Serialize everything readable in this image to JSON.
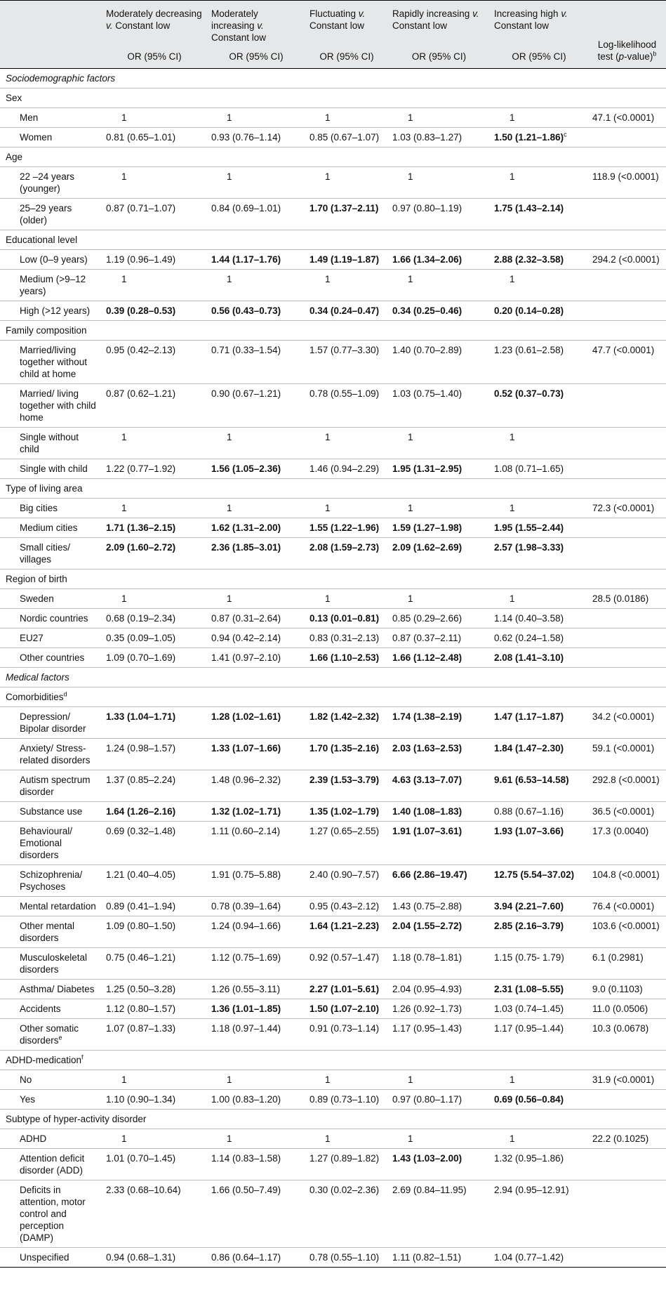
{
  "table": {
    "columns": [
      {
        "parts": [
          "Moderately decreasing ",
          "v.",
          " Constant low"
        ],
        "unit": "OR (95% CI)"
      },
      {
        "parts": [
          "Moderately increasing ",
          "v.",
          " Constant low"
        ],
        "unit": "OR (95% CI)"
      },
      {
        "parts": [
          "Fluctuating ",
          "v.",
          " Constant low"
        ],
        "unit": "OR (95% CI)"
      },
      {
        "parts": [
          "Rapidly increasing ",
          "v.",
          " Constant low"
        ],
        "unit": "OR (95% CI)"
      },
      {
        "parts": [
          "Increasing high ",
          "v.",
          " Constant low"
        ],
        "unit": "OR (95% CI)"
      }
    ],
    "test_header": {
      "parts": [
        "Log-likelihood test (",
        "p",
        "-value)"
      ],
      "sup": "b"
    },
    "rows": [
      {
        "kind": "section",
        "label": "Sociodemographic factors"
      },
      {
        "kind": "group",
        "label": "Sex"
      },
      {
        "kind": "row",
        "label": "Men",
        "cells": [
          "1",
          "1",
          "1",
          "1",
          "1"
        ],
        "test": "47.1 (<0.0001)"
      },
      {
        "kind": "row",
        "label": "Women",
        "cells": [
          "0.81 (0.65–1.01)",
          "0.93 (0.76–1.14)",
          "0.85 (0.67–1.07)",
          "1.03 (0.83–1.27)",
          {
            "text": "1.50 (1.21–1.86)",
            "bold": true,
            "sup": "c"
          }
        ]
      },
      {
        "kind": "group",
        "label": "Age"
      },
      {
        "kind": "row",
        "label": "22 –24 years (younger)",
        "cells": [
          "1",
          "1",
          "1",
          "1",
          "1"
        ],
        "test": "118.9 (<0.0001)"
      },
      {
        "kind": "row",
        "label": "25–29 years (older)",
        "cells": [
          "0.87 (0.71–1.07)",
          "0.84 (0.69–1.01)",
          {
            "text": "1.70 (1.37–2.11)",
            "bold": true
          },
          "0.97 (0.80–1.19)",
          {
            "text": "1.75 (1.43–2.14)",
            "bold": true
          }
        ]
      },
      {
        "kind": "group",
        "label": "Educational level"
      },
      {
        "kind": "row",
        "label": "Low (0–9 years)",
        "cells": [
          "1.19 (0.96–1.49)",
          {
            "text": "1.44 (1.17–1.76)",
            "bold": true
          },
          {
            "text": "1.49 (1.19–1.87)",
            "bold": true
          },
          {
            "text": "1.66 (1.34–2.06)",
            "bold": true
          },
          {
            "text": "2.88 (2.32–3.58)",
            "bold": true
          }
        ],
        "test": "294.2 (<0.0001)"
      },
      {
        "kind": "row",
        "label": "Medium (>9–12 years)",
        "cells": [
          "1",
          "1",
          "1",
          "1",
          "1"
        ]
      },
      {
        "kind": "row",
        "label": "High (>12 years)",
        "cells": [
          {
            "text": "0.39 (0.28–0.53)",
            "bold": true
          },
          {
            "text": "0.56 (0.43–0.73)",
            "bold": true
          },
          {
            "text": "0.34 (0.24–0.47)",
            "bold": true
          },
          {
            "text": "0.34 (0.25–0.46)",
            "bold": true
          },
          {
            "text": "0.20 (0.14–0.28)",
            "bold": true
          }
        ]
      },
      {
        "kind": "group",
        "label": "Family composition"
      },
      {
        "kind": "row",
        "label": "Married/living together without child at home",
        "cells": [
          "0.95 (0.42–2.13)",
          "0.71 (0.33–1.54)",
          "1.57 (0.77–3.30)",
          "1.40 (0.70–2.89)",
          "1.23 (0.61–2.58)"
        ],
        "test": "47.7 (<0.0001)"
      },
      {
        "kind": "row",
        "label": "Married/ living together with child home",
        "cells": [
          "0.87 (0.62–1.21)",
          "0.90 (0.67–1.21)",
          "0.78 (0.55–1.09)",
          "1.03 (0.75–1.40)",
          {
            "text": "0.52 (0.37–0.73)",
            "bold": true
          }
        ]
      },
      {
        "kind": "row",
        "label": "Single without child",
        "cells": [
          "1",
          "1",
          "1",
          "1",
          "1"
        ]
      },
      {
        "kind": "row",
        "label": "Single with child",
        "cells": [
          "1.22 (0.77–1.92)",
          {
            "text": "1.56 (1.05–2.36)",
            "bold": true
          },
          "1.46 (0.94–2.29)",
          {
            "text": "1.95 (1.31–2.95)",
            "bold": true
          },
          "1.08 (0.71–1.65)"
        ]
      },
      {
        "kind": "group",
        "label": "Type of living area"
      },
      {
        "kind": "row",
        "label": "Big cities",
        "cells": [
          "1",
          "1",
          "1",
          "1",
          "1"
        ],
        "test": "72.3 (<0.0001)"
      },
      {
        "kind": "row",
        "label": "Medium cities",
        "cells": [
          {
            "text": "1.71 (1.36–2.15)",
            "bold": true
          },
          {
            "text": "1.62 (1.31–2.00)",
            "bold": true
          },
          {
            "text": "1.55 (1.22–1.96)",
            "bold": true
          },
          {
            "text": "1.59 (1.27–1.98)",
            "bold": true
          },
          {
            "text": "1.95 (1.55–2.44)",
            "bold": true
          }
        ]
      },
      {
        "kind": "row",
        "label": "Small cities/ villages",
        "cells": [
          {
            "text": "2.09 (1.60–2.72)",
            "bold": true
          },
          {
            "text": "2.36 (1.85–3.01)",
            "bold": true
          },
          {
            "text": "2.08 (1.59–2.73)",
            "bold": true
          },
          {
            "text": "2.09 (1.62–2.69)",
            "bold": true
          },
          {
            "text": "2.57 (1.98–3.33)",
            "bold": true
          }
        ]
      },
      {
        "kind": "group",
        "label": "Region of birth"
      },
      {
        "kind": "row",
        "label": "Sweden",
        "cells": [
          "1",
          "1",
          "1",
          "1",
          "1"
        ],
        "test": "28.5 (0.0186)"
      },
      {
        "kind": "row",
        "label": "Nordic countries",
        "cells": [
          "0.68 (0.19–2.34)",
          "0.87 (0.31–2.64)",
          {
            "text": "0.13 (0.01–0.81)",
            "bold": true
          },
          "0.85 (0.29–2.66)",
          "1.14 (0.40–3.58)"
        ]
      },
      {
        "kind": "row",
        "label": "EU27",
        "cells": [
          "0.35 (0.09–1.05)",
          "0.94 (0.42–2.14)",
          "0.83 (0.31–2.13)",
          "0.87 (0.37–2.11)",
          "0.62 (0.24–1.58)"
        ]
      },
      {
        "kind": "row",
        "label": "Other countries",
        "cells": [
          "1.09 (0.70–1.69)",
          "1.41 (0.97–2.10)",
          {
            "text": "1.66 (1.10–2.53)",
            "bold": true
          },
          {
            "text": "1.66 (1.12–2.48)",
            "bold": true
          },
          {
            "text": "2.08 (1.41–3.10)",
            "bold": true
          }
        ]
      },
      {
        "kind": "section",
        "label": "Medical factors"
      },
      {
        "kind": "group",
        "label": "Comorbidities",
        "label_sup": "d"
      },
      {
        "kind": "row",
        "label": "Depression/ Bipolar disorder",
        "cells": [
          {
            "text": "1.33 (1.04–1.71)",
            "bold": true
          },
          {
            "text": "1.28 (1.02–1.61)",
            "bold": true
          },
          {
            "text": "1.82 (1.42–2.32)",
            "bold": true
          },
          {
            "text": "1.74 (1.38–2.19)",
            "bold": true
          },
          {
            "text": "1.47 (1.17–1.87)",
            "bold": true
          }
        ],
        "test": "34.2 (<0.0001)"
      },
      {
        "kind": "row",
        "label": "Anxiety/ Stress-related disorders",
        "cells": [
          "1.24 (0.98–1.57)",
          {
            "text": "1.33 (1.07–1.66)",
            "bold": true
          },
          {
            "text": "1.70 (1.35–2.16)",
            "bold": true
          },
          {
            "text": "2.03 (1.63–2.53)",
            "bold": true
          },
          {
            "text": "1.84 (1.47–2.30)",
            "bold": true
          }
        ],
        "test": "59.1 (<0.0001)"
      },
      {
        "kind": "row",
        "label": "Autism spectrum disorder",
        "cells": [
          "1.37 (0.85–2.24)",
          "1.48 (0.96–2.32)",
          {
            "text": "2.39 (1.53–3.79)",
            "bold": true
          },
          {
            "text": "4.63 (3.13–7.07)",
            "bold": true
          },
          {
            "text": "9.61 (6.53–14.58)",
            "bold": true
          }
        ],
        "test": "292.8 (<0.0001)"
      },
      {
        "kind": "row",
        "label": "Substance use",
        "cells": [
          {
            "text": "1.64 (1.26–2.16)",
            "bold": true
          },
          {
            "text": "1.32 (1.02–1.71)",
            "bold": true
          },
          {
            "text": "1.35 (1.02–1.79)",
            "bold": true
          },
          {
            "text": "1.40 (1.08–1.83)",
            "bold": true
          },
          "0.88 (0.67–1.16)"
        ],
        "test": "36.5 (<0.0001)"
      },
      {
        "kind": "row",
        "label": "Behavioural/ Emotional disorders",
        "cells": [
          "0.69 (0.32–1.48)",
          "1.11 (0.60–2.14)",
          "1.27 (0.65–2.55)",
          {
            "text": "1.91 (1.07–3.61)",
            "bold": true
          },
          {
            "text": "1.93 (1.07–3.66)",
            "bold": true
          }
        ],
        "test": "17.3 (0.0040)"
      },
      {
        "kind": "row",
        "label": "Schizophrenia/ Psychoses",
        "cells": [
          "1.21 (0.40–4.05)",
          "1.91 (0.75–5.88)",
          "2.40 (0.90–7.57)",
          {
            "text": "6.66 (2.86–19.47)",
            "bold": true
          },
          {
            "text": "12.75 (5.54–37.02)",
            "bold": true
          }
        ],
        "test": "104.8 (<0.0001)"
      },
      {
        "kind": "row",
        "label": "Mental retardation",
        "cells": [
          "0.89 (0.41–1.94)",
          "0.78 (0.39–1.64)",
          "0.95 (0.43–2.12)",
          "1.43 (0.75–2.88)",
          {
            "text": "3.94 (2.21–7.60)",
            "bold": true
          }
        ],
        "test": "76.4 (<0.0001)"
      },
      {
        "kind": "row",
        "label": "Other mental disorders",
        "cells": [
          "1.09 (0.80–1.50)",
          "1.24 (0.94–1.66)",
          {
            "text": "1.64 (1.21–2.23)",
            "bold": true
          },
          {
            "text": "2.04 (1.55–2.72)",
            "bold": true
          },
          {
            "text": "2.85 (2.16–3.79)",
            "bold": true
          }
        ],
        "test": "103.6 (<0.0001)"
      },
      {
        "kind": "row",
        "label": "Musculoskeletal disorders",
        "cells": [
          "0.75 (0.46–1.21)",
          "1.12 (0.75–1.69)",
          "0.92 (0.57–1.47)",
          "1.18 (0.78–1.81)",
          "1.15 (0.75- 1.79)"
        ],
        "test": "6.1 (0.2981)"
      },
      {
        "kind": "row",
        "label": "Asthma/ Diabetes",
        "cells": [
          "1.25 (0.50–3.28)",
          "1.26 (0.55–3.11)",
          {
            "text": "2.27 (1.01–5.61)",
            "bold": true
          },
          "2.04 (0.95–4.93)",
          {
            "text": "2.31 (1.08–5.55)",
            "bold": true
          }
        ],
        "test": "9.0 (0.1103)"
      },
      {
        "kind": "row",
        "label": "Accidents",
        "cells": [
          "1.12 (0.80–1.57)",
          {
            "text": "1.36 (1.01–1.85)",
            "bold": true
          },
          {
            "text": "1.50 (1.07–2.10)",
            "bold": true
          },
          "1.26 (0.92–1.73)",
          "1.03 (0.74–1.45)"
        ],
        "test": "11.0 (0.0506)"
      },
      {
        "kind": "row",
        "label": "Other somatic disorders",
        "label_sup": "e",
        "cells": [
          "1.07 (0.87–1.33)",
          "1.18 (0.97–1.44)",
          "0.91 (0.73–1.14)",
          "1.17 (0.95–1.43)",
          "1.17 (0.95–1.44)"
        ],
        "test": "10.3 (0.0678)"
      },
      {
        "kind": "group",
        "label": "ADHD-medication",
        "label_sup": "f"
      },
      {
        "kind": "row",
        "label": "No",
        "cells": [
          "1",
          "1",
          "1",
          "1",
          "1"
        ],
        "test": "31.9 (<0.0001)"
      },
      {
        "kind": "row",
        "label": "Yes",
        "cells": [
          "1.10 (0.90–1.34)",
          "1.00 (0.83–1.20)",
          "0.89 (0.73–1.10)",
          "0.97 (0.80–1.17)",
          {
            "text": "0.69 (0.56–0.84)",
            "bold": true
          }
        ]
      },
      {
        "kind": "group",
        "label": "Subtype of hyper-activity disorder"
      },
      {
        "kind": "row",
        "label": "ADHD",
        "cells": [
          "1",
          "1",
          "1",
          "1",
          "1"
        ],
        "test": "22.2 (0.1025)"
      },
      {
        "kind": "row",
        "label": "Attention deficit disorder (ADD)",
        "cells": [
          "1.01 (0.70–1.45)",
          "1.14 (0.83–1.58)",
          "1.27 (0.89–1.82)",
          {
            "text": "1.43 (1.03–2.00)",
            "bold": true
          },
          "1.32 (0.95–1.86)"
        ]
      },
      {
        "kind": "row",
        "label": "Deficits in attention, motor control and perception (DAMP)",
        "cells": [
          "2.33 (0.68–10.64)",
          "1.66 (0.50–7.49)",
          "0.30 (0.02–2.36)",
          "2.69 (0.84–11.95)",
          "2.94 (0.95–12.91)"
        ]
      },
      {
        "kind": "row",
        "label": "Unspecified",
        "cells": [
          "0.94 (0.68–1.31)",
          "0.86 (0.64–1.17)",
          "0.78 (0.55–1.10)",
          "1.11 (0.82–1.51)",
          "1.04 (0.77–1.42)"
        ]
      }
    ]
  }
}
